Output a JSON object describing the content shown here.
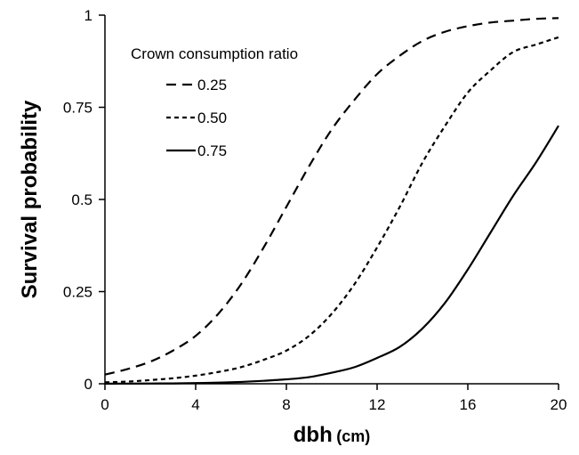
{
  "chart_data": {
    "type": "line",
    "title": "",
    "xlabel": "dbh",
    "xlabel_unit": "(cm)",
    "ylabel": "Survival probability",
    "xlim": [
      0,
      20
    ],
    "ylim": [
      0,
      1
    ],
    "x_ticks": [
      0,
      4,
      8,
      12,
      16,
      20
    ],
    "x_tick_labels": [
      "0",
      "4",
      "8",
      "12",
      "16",
      "20"
    ],
    "y_ticks": [
      0,
      0.25,
      0.5,
      0.75,
      1
    ],
    "y_tick_labels": [
      "0",
      "0.25",
      "0.5",
      "0.75",
      "1"
    ],
    "grid": false,
    "legend": {
      "title": "Crown consumption ratio",
      "placement": "top-left"
    },
    "x": [
      0,
      1,
      2,
      3,
      4,
      5,
      6,
      7,
      8,
      9,
      10,
      11,
      12,
      13,
      14,
      15,
      16,
      17,
      18,
      19,
      20
    ],
    "series": [
      {
        "name": "0.25",
        "style": "long-dash",
        "values": [
          0.025,
          0.04,
          0.06,
          0.09,
          0.13,
          0.19,
          0.27,
          0.37,
          0.48,
          0.59,
          0.69,
          0.77,
          0.84,
          0.89,
          0.93,
          0.955,
          0.97,
          0.98,
          0.985,
          0.99,
          0.992
        ]
      },
      {
        "name": "0.50",
        "style": "short-dash",
        "values": [
          0.004,
          0.006,
          0.01,
          0.015,
          0.022,
          0.032,
          0.045,
          0.065,
          0.09,
          0.13,
          0.19,
          0.27,
          0.37,
          0.48,
          0.6,
          0.7,
          0.79,
          0.85,
          0.9,
          0.92,
          0.94
        ]
      },
      {
        "name": "0.75",
        "style": "solid",
        "values": [
          0.0003,
          0.0005,
          0.0008,
          0.001,
          0.002,
          0.003,
          0.005,
          0.008,
          0.012,
          0.018,
          0.03,
          0.045,
          0.07,
          0.1,
          0.15,
          0.22,
          0.31,
          0.41,
          0.51,
          0.6,
          0.7
        ]
      }
    ]
  },
  "colors": {
    "line": "#000000",
    "background": "#ffffff"
  }
}
